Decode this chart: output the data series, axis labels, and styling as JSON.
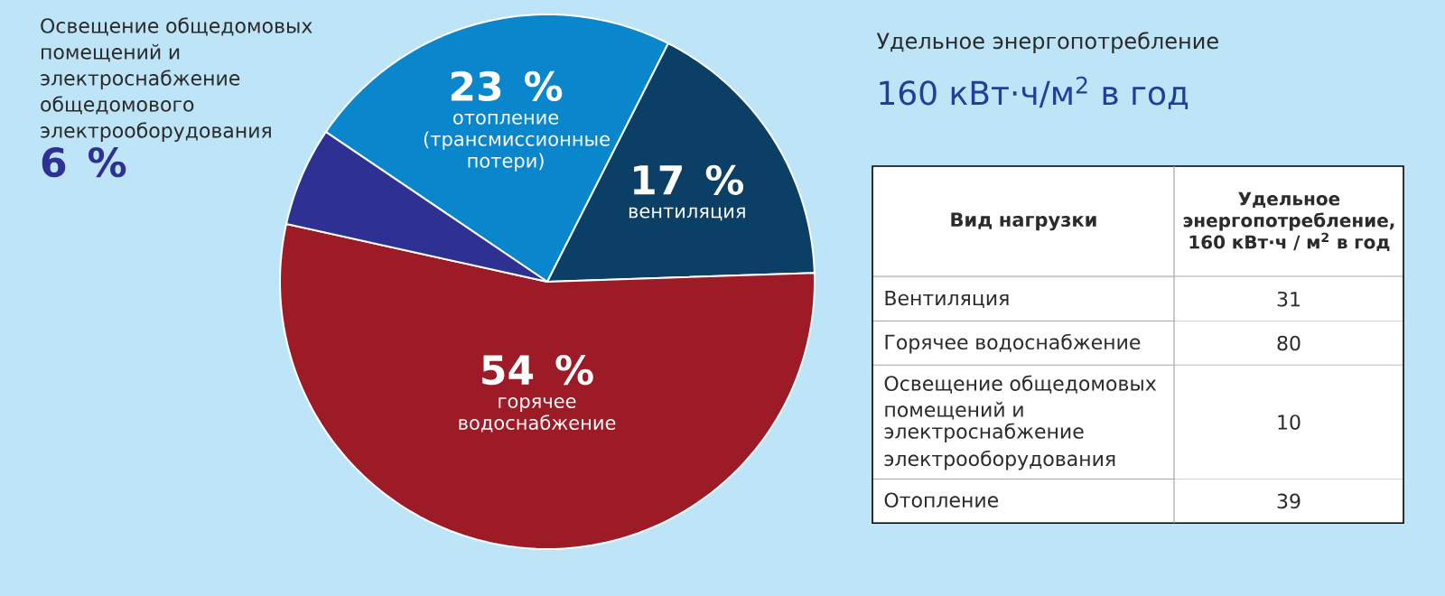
{
  "chart_data": [
    {
      "type": "pie",
      "title": "Удельное энергопотребление",
      "subtitle": "160 кВт·ч/м$^{2}$ в год",
      "categories": [
        "отопление (трансмиссионные потери)",
        "вентиляция",
        "горячее водоснабжение",
        "Освещение общедомовых помещений и электроснабжение общедомового электрооборудования"
      ],
      "values": [
        23,
        17,
        54,
        6
      ],
      "colors": [
        "#0a87cc",
        "#0b3f66",
        "#9c1b27",
        "#2e3192"
      ],
      "value_labels": [
        "23 %",
        "17 %",
        "54 %",
        "6 %"
      ]
    },
    {
      "type": "other",
      "xlabel": "Вид нагрузки",
      "ylabel": "Удельное энергопотребление, 160 кВт·ч / м$^{2}$ в год",
      "categories": [
        "Вентиляция",
        "Горячее водоснабжение",
        "Освещение общедомовых помещений и электроснабжение электрооборудования",
        "Отопление"
      ],
      "values": [
        31,
        80,
        10,
        39
      ],
      "data_labels": true
    }
  ]
}
